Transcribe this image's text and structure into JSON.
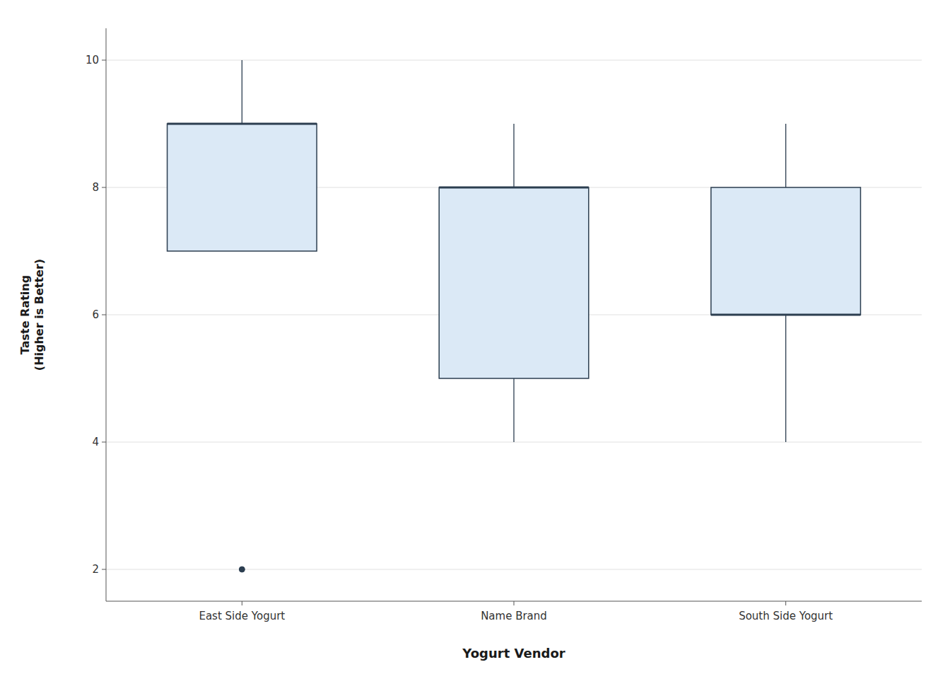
{
  "chart_data": {
    "type": "box",
    "categories": [
      "East Side Yogurt",
      "Name Brand",
      "South Side Yogurt"
    ],
    "boxes": [
      {
        "q1": 7,
        "median": 9,
        "q3": 9,
        "whislo": 7,
        "whishi": 10,
        "fliers": [
          2
        ]
      },
      {
        "q1": 5,
        "median": 8,
        "q3": 8,
        "whislo": 4,
        "whishi": 9,
        "fliers": []
      },
      {
        "q1": 6,
        "median": 6,
        "q3": 8,
        "whislo": 4,
        "whishi": 9,
        "fliers": []
      }
    ],
    "xlabel": "Yogurt Vendor",
    "ylabel": "Taste Rating\n(Higher is Better)",
    "ylim": [
      1.5,
      10.5
    ],
    "yticks": [
      2,
      4,
      6,
      8,
      10
    ],
    "grid": true
  }
}
